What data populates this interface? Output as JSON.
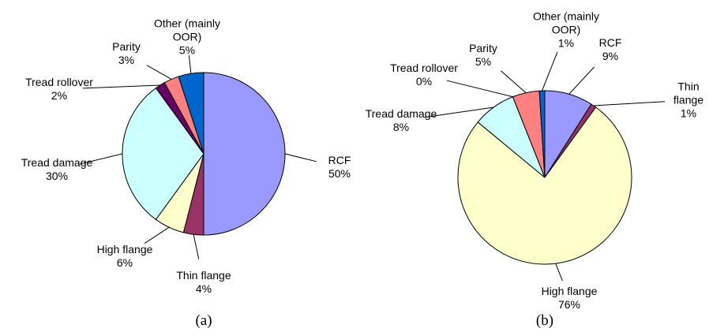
{
  "chart_data": [
    {
      "type": "pie",
      "caption": "(a)",
      "categories": [
        "RCF",
        "Thin flange",
        "High flange",
        "Tread damage",
        "Tread rollover",
        "Parity",
        "Other (mainly OOR)"
      ],
      "values": [
        50,
        4,
        6,
        30,
        2,
        3,
        5
      ],
      "value_labels": [
        "50%",
        "4%",
        "6%",
        "30%",
        "2%",
        "3%",
        "5%"
      ],
      "colors": [
        "#9999ff",
        "#993366",
        "#ffffcc",
        "#ccffff",
        "#660066",
        "#ff8080",
        "#0066cc"
      ]
    },
    {
      "type": "pie",
      "caption": "(b)",
      "categories": [
        "RCF",
        "Thin flange",
        "High flange",
        "Tread damage",
        "Tread rollover",
        "Parity",
        "Other (mainly OOR)"
      ],
      "values": [
        9,
        1,
        76,
        8,
        0,
        5,
        1
      ],
      "value_labels": [
        "9%",
        "1%",
        "76%",
        "8%",
        "0%",
        "5%",
        "1%"
      ],
      "colors": [
        "#9999ff",
        "#993366",
        "#ffffcc",
        "#ccffff",
        "#660066",
        "#ff8080",
        "#0066cc"
      ]
    }
  ]
}
